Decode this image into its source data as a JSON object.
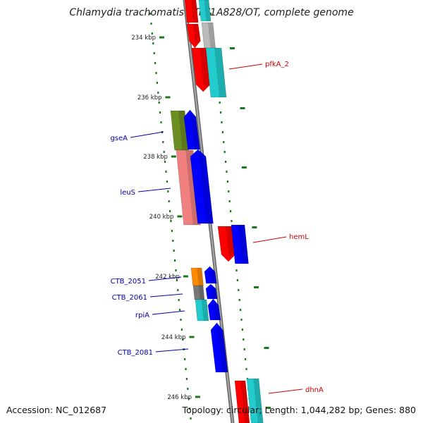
{
  "title": "Chlamydia trachomatis B/TZ1A828/OT, complete genome",
  "footer": {
    "accession": "Accession: NC_012687",
    "summary": "Topology: circular; Length: 1,044,282 bp; Genes: 880"
  },
  "colors": {
    "ruler": "#1a7a1a",
    "backbone": "#888888",
    "forward_label": "#cc0000",
    "reverse_label": "#0000aa",
    "red": "#ff0000",
    "blue": "#0000ff",
    "cyan": "#22cccc",
    "gray": "#bbbbbb",
    "olive": "#6b8e23",
    "salmon": "#f08080",
    "orange": "#ff8c00",
    "darkgray": "#777777"
  },
  "ticks": [
    {
      "label": "234 kbp"
    },
    {
      "label": "236 kbp"
    },
    {
      "label": "238 kbp"
    },
    {
      "label": "240 kbp"
    },
    {
      "label": "242 kbp"
    },
    {
      "label": "244 kbp"
    },
    {
      "label": "246 kbp"
    }
  ],
  "gene_labels": [
    {
      "name": "pfkA_2",
      "strand": "forward"
    },
    {
      "name": "gseA",
      "strand": "reverse"
    },
    {
      "name": "leuS",
      "strand": "reverse"
    },
    {
      "name": "hemL",
      "strand": "forward"
    },
    {
      "name": "CTB_2051",
      "strand": "reverse"
    },
    {
      "name": "CTB_2061",
      "strand": "reverse"
    },
    {
      "name": "rpiA",
      "strand": "reverse"
    },
    {
      "name": "CTB_2081",
      "strand": "reverse"
    },
    {
      "name": "dhnA",
      "strand": "forward"
    }
  ]
}
